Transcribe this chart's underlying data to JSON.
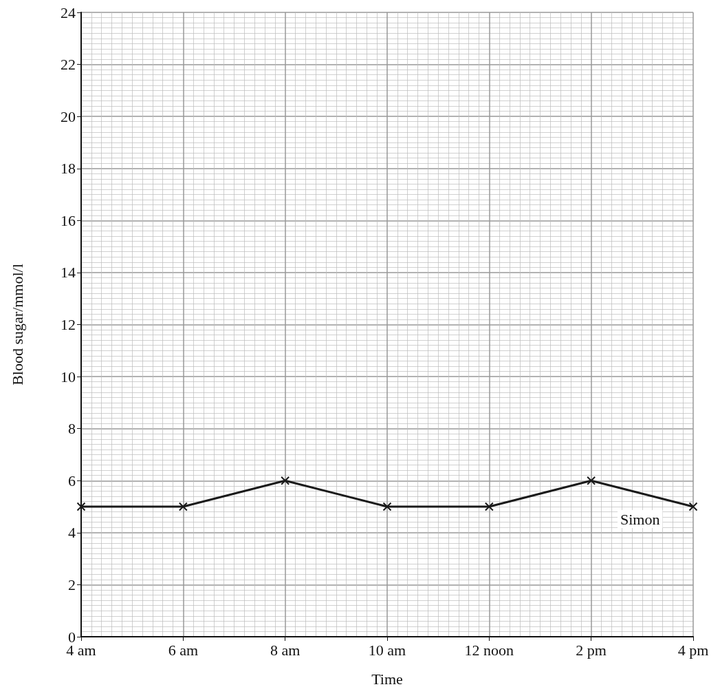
{
  "chart_data": {
    "type": "line",
    "xlabel": "Time",
    "ylabel": "Blood sugar/mmol/l",
    "categories": [
      "4 am",
      "6 am",
      "8 am",
      "10 am",
      "12 noon",
      "2 pm",
      "4 pm"
    ],
    "series": [
      {
        "name": "Simon",
        "color": "#1a1a1a",
        "values": [
          5,
          5,
          6,
          5,
          5,
          6,
          5
        ]
      }
    ],
    "ylim": [
      0,
      24
    ],
    "yticks": [
      0,
      2,
      4,
      6,
      8,
      10,
      12,
      14,
      16,
      18,
      20,
      22,
      24
    ],
    "grid": true,
    "marker": "cross",
    "line_style": "solid",
    "legend": false
  }
}
